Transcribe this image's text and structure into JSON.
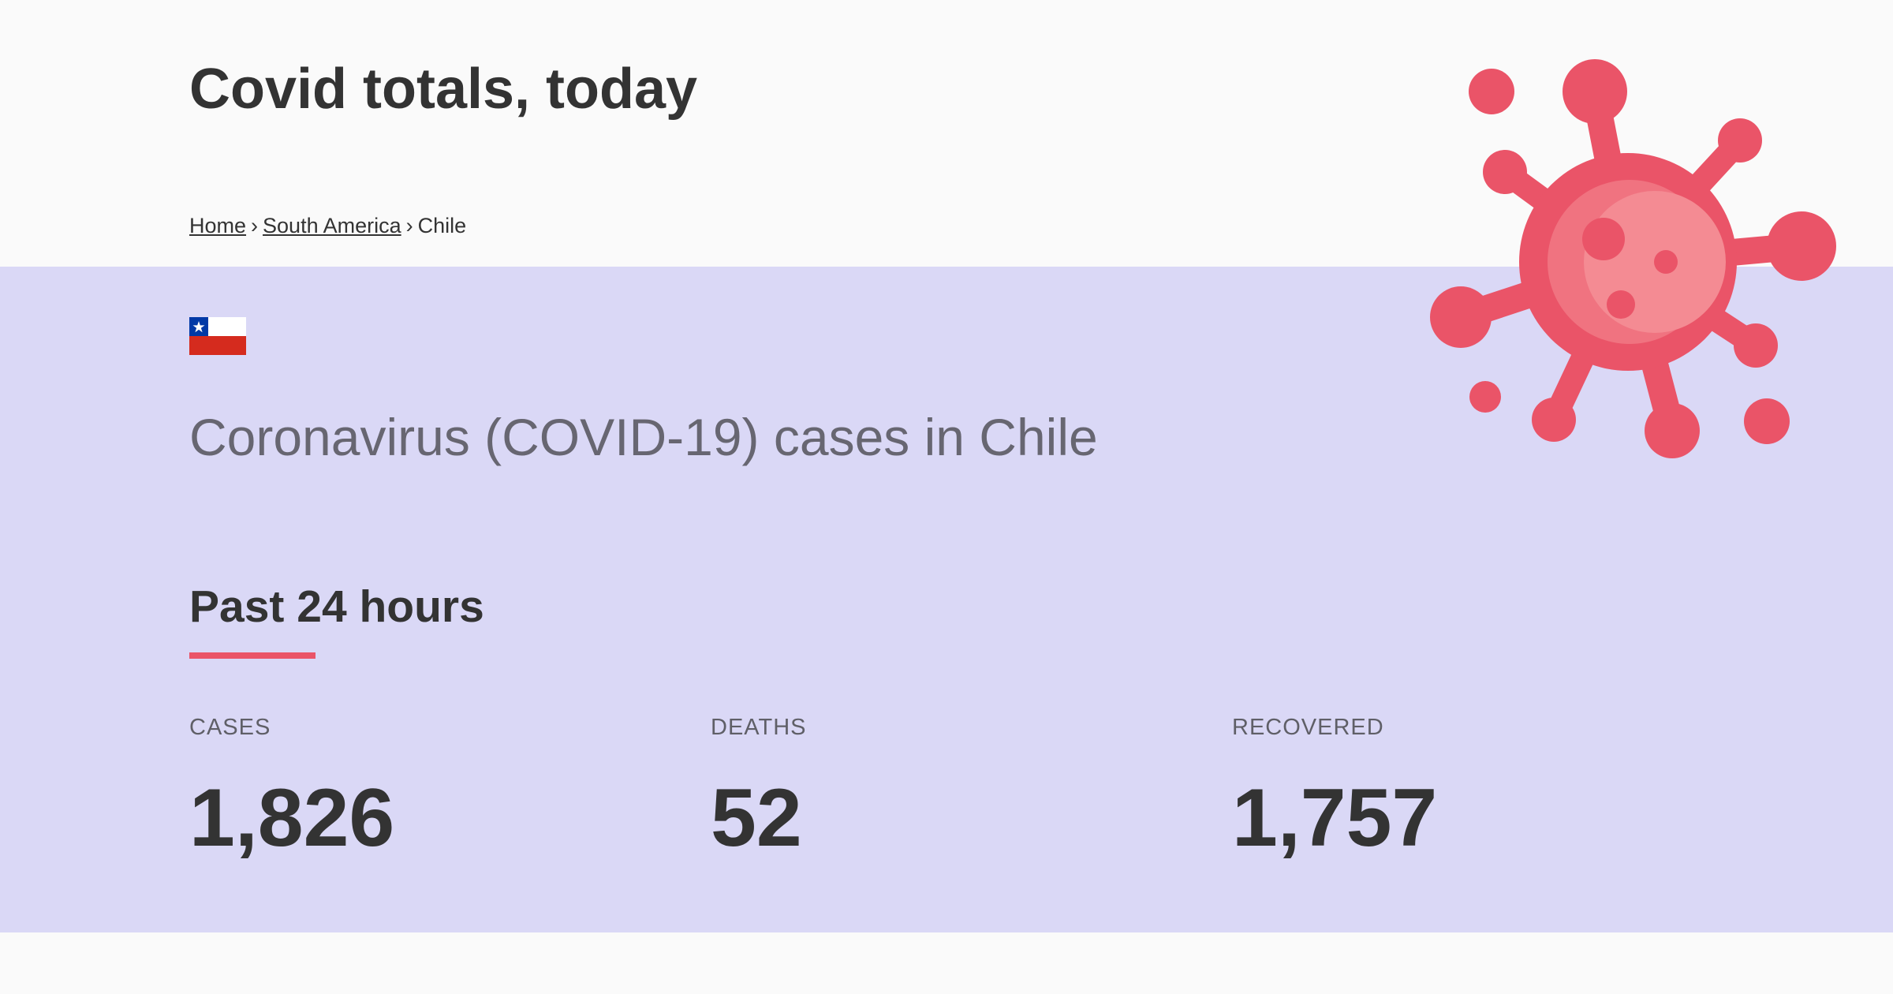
{
  "header": {
    "title": "Covid totals, today"
  },
  "breadcrumb": {
    "items": [
      {
        "label": "Home"
      },
      {
        "label": "South America"
      }
    ],
    "separator": "›",
    "current": "Chile"
  },
  "country": {
    "flag": "chile-flag",
    "heading": "Coronavirus (COVID-19) cases in Chile"
  },
  "section": {
    "title": "Past 24 hours"
  },
  "stats": [
    {
      "label": "CASES",
      "value": "1,826"
    },
    {
      "label": "DEATHS",
      "value": "52"
    },
    {
      "label": "RECOVERED",
      "value": "1,757"
    }
  ],
  "icons": {
    "virus": "virus-icon"
  },
  "colors": {
    "accent": "#ea5468",
    "band_background": "#dad8f6",
    "page_background": "#fafafa",
    "text": "#333333"
  }
}
